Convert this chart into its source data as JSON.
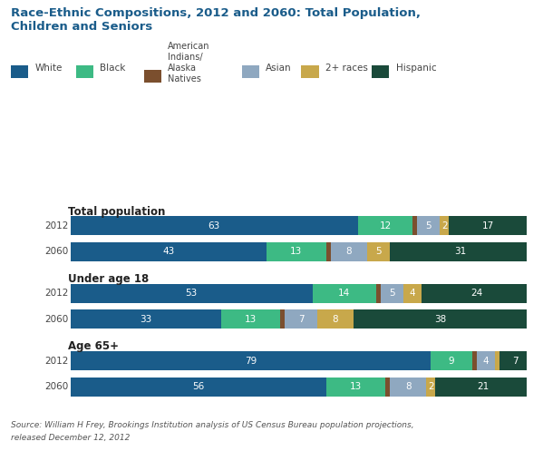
{
  "title_line1": "Race-Ethnic Compositions, 2012 and 2060: Total Population,",
  "title_line2": "Children and Seniors",
  "title_color": "#1a5c8a",
  "categories": [
    {
      "group": "Total population",
      "year": "2012",
      "values": [
        63,
        12,
        1,
        5,
        2,
        17
      ]
    },
    {
      "group": "Total population",
      "year": "2060",
      "values": [
        43,
        13,
        1,
        8,
        5,
        31
      ]
    },
    {
      "group": "Under age 18",
      "year": "2012",
      "values": [
        53,
        14,
        1,
        5,
        4,
        24
      ]
    },
    {
      "group": "Under age 18",
      "year": "2060",
      "values": [
        33,
        13,
        1,
        7,
        8,
        38
      ]
    },
    {
      "group": "Age 65+",
      "year": "2012",
      "values": [
        79,
        9,
        1,
        4,
        1,
        7
      ]
    },
    {
      "group": "Age 65+",
      "year": "2060",
      "values": [
        56,
        13,
        1,
        8,
        2,
        21
      ]
    }
  ],
  "colors": [
    "#1a5c8a",
    "#3dba84",
    "#7b4f2e",
    "#8fa8c0",
    "#c8a84b",
    "#1a4a3a"
  ],
  "legend_labels": [
    "White",
    "Black",
    "American\nIndians/\nAlaska\nNatives",
    "Asian",
    "2+ races",
    "Hispanic"
  ],
  "source_line1": "Source: William H Frey, Brookings Institution analysis of US Census Bureau population projections,",
  "source_line2": "released December 12, 2012",
  "background_color": "#ffffff",
  "text_white": "#ffffff",
  "text_dark": "#222222",
  "group_label_color": "#222222",
  "year_label_color": "#444444"
}
